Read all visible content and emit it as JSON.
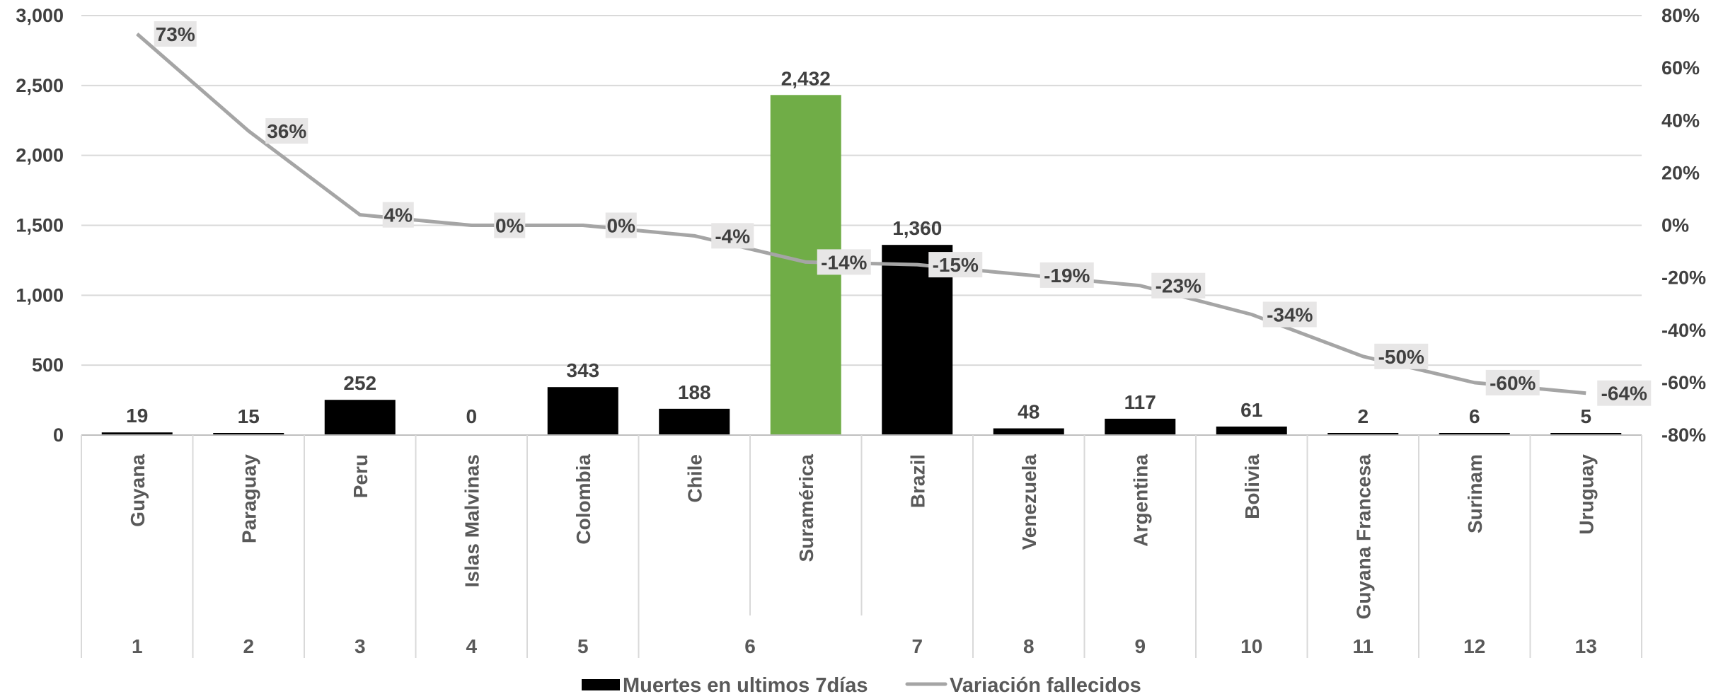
{
  "chart_data": {
    "type": "bar",
    "categories": [
      "Guyana",
      "Paraguay",
      "Peru",
      "Islas Malvinas",
      "Colombia",
      "Chile",
      "Suramérica",
      "Brazil",
      "Venezuela",
      "Argentina",
      "Bolivia",
      "Guyana Francesa",
      "Surinam",
      "Uruguay"
    ],
    "ranks": [
      "1",
      "2",
      "3",
      "4",
      "5",
      "6",
      "",
      "7",
      "8",
      "9",
      "10",
      "11",
      "12",
      "13"
    ],
    "series": [
      {
        "name": "Muertes en ultimos 7días",
        "type": "bar",
        "axis": "left",
        "values": [
          19,
          15,
          252,
          0,
          343,
          188,
          2432,
          1360,
          48,
          117,
          61,
          2,
          6,
          5
        ],
        "labels": [
          "19",
          "15",
          "252",
          "0",
          "343",
          "188",
          "2,432",
          "1,360",
          "48",
          "117",
          "61",
          "2",
          "6",
          "5"
        ]
      },
      {
        "name": "Variación fallecidos",
        "type": "line",
        "axis": "right",
        "values": [
          73,
          36,
          4,
          0,
          0,
          -4,
          -14,
          -15,
          -19,
          -23,
          -34,
          -50,
          -60,
          -64
        ],
        "labels": [
          "73%",
          "36%",
          "4%",
          "0%",
          "0%",
          "-4%",
          "-14%",
          "-15%",
          "-19%",
          "-23%",
          "-34%",
          "-50%",
          "-60%",
          "-64%"
        ]
      }
    ],
    "y_left": {
      "min": 0,
      "max": 3000,
      "ticks": [
        "0",
        "500",
        "1,000",
        "1,500",
        "2,000",
        "2,500",
        "3,000"
      ]
    },
    "y_right": {
      "min": -80,
      "max": 80,
      "ticks": [
        "-80%",
        "-60%",
        "-40%",
        "-20%",
        "0%",
        "20%",
        "40%",
        "60%",
        "80%"
      ]
    },
    "highlight_category": "Suramérica",
    "grid": true,
    "legend_position": "bottom",
    "colors": {
      "bar": "#000000",
      "highlight": "#70ad47",
      "line": "#a5a5a5",
      "grid": "#d9d9d9",
      "label_bg": "#e7e6e6"
    }
  }
}
